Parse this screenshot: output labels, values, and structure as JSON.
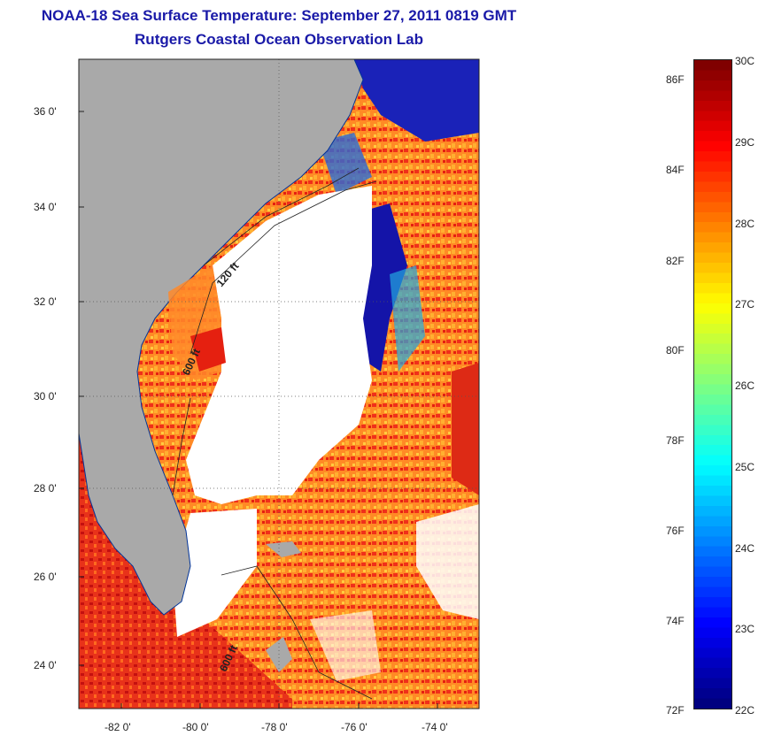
{
  "header": {
    "title": "NOAA-18 Sea Surface Temperature:  September 27, 2011 0819 GMT",
    "subtitle": "Rutgers Coastal Ocean Observation Lab"
  },
  "map": {
    "lon_range": [
      -83,
      -73
    ],
    "lat_range": [
      23,
      37
    ],
    "lon_ticks": [
      "-82 0'",
      "-80 0'",
      "-78 0'",
      "-76 0'",
      "-74 0'"
    ],
    "lat_ticks": [
      "36 0'",
      "34 0'",
      "32 0'",
      "30 0'",
      "28 0'",
      "26 0'",
      "24 0'"
    ],
    "contour_labels": [
      "120 ft",
      "600 ft",
      "600 ft"
    ],
    "colors": {
      "land": "#a9a9a9",
      "cloud": "#ffffff",
      "warm": "#ee3311",
      "mid": "#ff9933",
      "cool": "#1010b0"
    }
  },
  "colorbar": {
    "fahrenheit_labels": [
      "86F",
      "84F",
      "82F",
      "80F",
      "78F",
      "76F",
      "74F",
      "72F"
    ],
    "celsius_labels": [
      "30C",
      "29C",
      "28C",
      "27C",
      "26C",
      "25C",
      "24C",
      "23C",
      "22C"
    ],
    "range_c": [
      22,
      30
    ],
    "range_f": [
      72,
      86
    ]
  }
}
